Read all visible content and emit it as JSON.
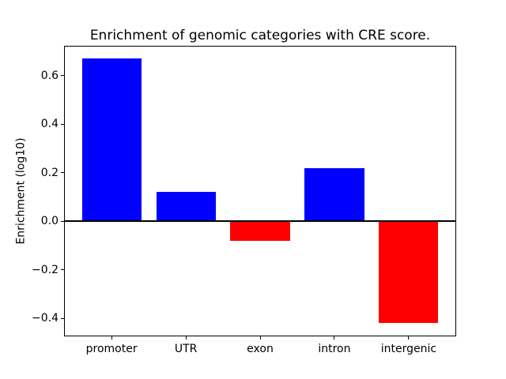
{
  "chart_data": {
    "type": "bar",
    "title": "Enrichment of genomic categories with CRE score.",
    "ylabel": "Enrichment (log10)",
    "xlabel": "",
    "categories": [
      "promoter",
      "UTR",
      "exon",
      "intron",
      "intergenic"
    ],
    "values": [
      0.67,
      0.12,
      -0.08,
      0.22,
      -0.42
    ],
    "yticks": [
      0.6,
      0.4,
      0.2,
      0.0,
      -0.2,
      -0.4
    ],
    "ytick_labels": [
      "0.6",
      "0.4",
      "0.2",
      "0.0",
      "−0.2",
      "−0.4"
    ],
    "ylim": [
      -0.474,
      0.723
    ],
    "bar_color_positive": "#0000ff",
    "bar_color_negative": "#ff0000",
    "axis_color": "#000000",
    "background": "#ffffff",
    "zero_line": true,
    "grid": false,
    "legend": null
  }
}
